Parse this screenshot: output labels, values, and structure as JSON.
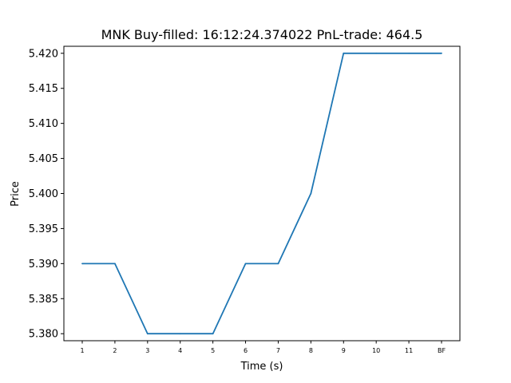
{
  "chart_data": {
    "type": "line",
    "title": "MNK  Buy-filled:  16:12:24.374022  PnL-trade:  464.5",
    "xlabel": "Time (s)",
    "ylabel": "Price",
    "categories": [
      "1",
      "2",
      "3",
      "4",
      "5",
      "6",
      "7",
      "8",
      "9",
      "10",
      "11",
      "BF"
    ],
    "series": [
      {
        "values": [
          5.39,
          5.39,
          5.38,
          5.38,
          5.38,
          5.39,
          5.39,
          5.4,
          5.42,
          5.42,
          5.42,
          5.42
        ],
        "color": "#1f77b4"
      }
    ],
    "yticks": [
      "5.380",
      "5.385",
      "5.390",
      "5.395",
      "5.400",
      "5.405",
      "5.410",
      "5.415",
      "5.420"
    ],
    "ylim": [
      5.379,
      5.421
    ],
    "grid": false,
    "legend": "none"
  }
}
